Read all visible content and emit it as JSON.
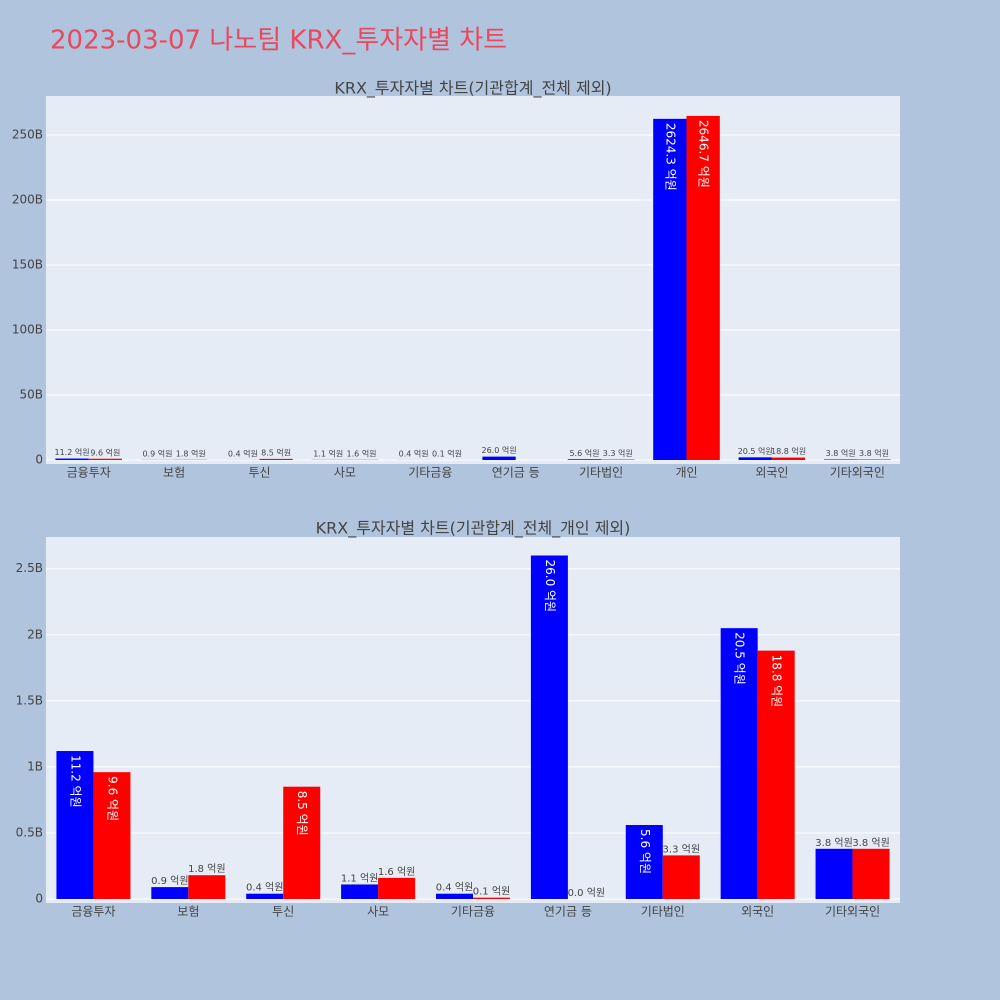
{
  "title": "2023-03-07 나노팀 KRX_투자자별 차트",
  "chart_data": [
    {
      "type": "bar",
      "title": "KRX_투자자별 차트(기관합계_전체 제외)",
      "categories": [
        "금융투자",
        "보험",
        "투신",
        "사모",
        "기타금융",
        "연기금 등",
        "기타법인",
        "개인",
        "외국인",
        "기타외국인"
      ],
      "series": [
        {
          "color": "#0000ff",
          "values": [
            1120000000,
            90000000,
            40000000,
            110000000,
            40000000,
            2600000000,
            560000000,
            262430000000,
            2050000000,
            380000000
          ],
          "value_labels": [
            "11.2 억원",
            "0.9 억원",
            "0.4 억원",
            "1.1 억원",
            "0.4 억원",
            "26.0 억원",
            "5.6 억원",
            "2624.3 억원",
            "20.5 억원",
            "3.8 억원"
          ]
        },
        {
          "color": "#ff0000",
          "values": [
            960000000,
            180000000,
            850000000,
            160000000,
            10000000,
            0,
            330000000,
            264670000000,
            1880000000,
            380000000
          ],
          "value_labels": [
            "9.6 억원",
            "1.8 억원",
            "8.5 억원",
            "1.6 억원",
            "0.1 억원",
            null,
            "3.3 억원",
            "2646.7 억원",
            "18.8 억원",
            "3.8 억원"
          ]
        }
      ],
      "ylim": [
        0,
        280000000000
      ],
      "yticks": [
        0,
        {
          "value": 50000000000,
          "label": "50B"
        },
        {
          "value": 100000000000,
          "label": "100B"
        },
        {
          "value": 150000000000,
          "label": "150B"
        },
        {
          "value": 200000000000,
          "label": "200B"
        },
        {
          "value": 250000000000,
          "label": "250B"
        }
      ],
      "grid": true
    },
    {
      "type": "bar",
      "title": "KRX_투자자별 차트(기관합계_전체_개인 제외)",
      "categories": [
        "금융투자",
        "보험",
        "투신",
        "사모",
        "기타금융",
        "연기금 등",
        "기타법인",
        "외국인",
        "기타외국인"
      ],
      "series": [
        {
          "color": "#0000ff",
          "values": [
            1120000000,
            90000000,
            40000000,
            110000000,
            40000000,
            2600000000,
            560000000,
            2050000000,
            380000000
          ],
          "value_labels": [
            "11.2 억원",
            "0.9 억원",
            "0.4 억원",
            "1.1 억원",
            "0.4 억원",
            "26.0 억원",
            "5.6 억원",
            "20.5 억원",
            "3.8 억원"
          ]
        },
        {
          "color": "#ff0000",
          "values": [
            960000000,
            180000000,
            850000000,
            160000000,
            10000000,
            0,
            330000000,
            1880000000,
            380000000
          ],
          "value_labels": [
            "9.6 억원",
            "1.8 억원",
            "8.5 억원",
            "1.6 억원",
            "0.1 억원",
            "0.0 억원",
            "3.3 억원",
            "18.8 억원",
            "3.8 억원"
          ]
        }
      ],
      "ylim": [
        0,
        2740000000
      ],
      "yticks": [
        0,
        {
          "value": 500000000,
          "label": "0.5B"
        },
        {
          "value": 1000000000,
          "label": "1B"
        },
        {
          "value": 1500000000,
          "label": "1.5B"
        },
        {
          "value": 2000000000,
          "label": "2B"
        },
        {
          "value": 2500000000,
          "label": "2.5B"
        }
      ],
      "grid": true
    }
  ]
}
